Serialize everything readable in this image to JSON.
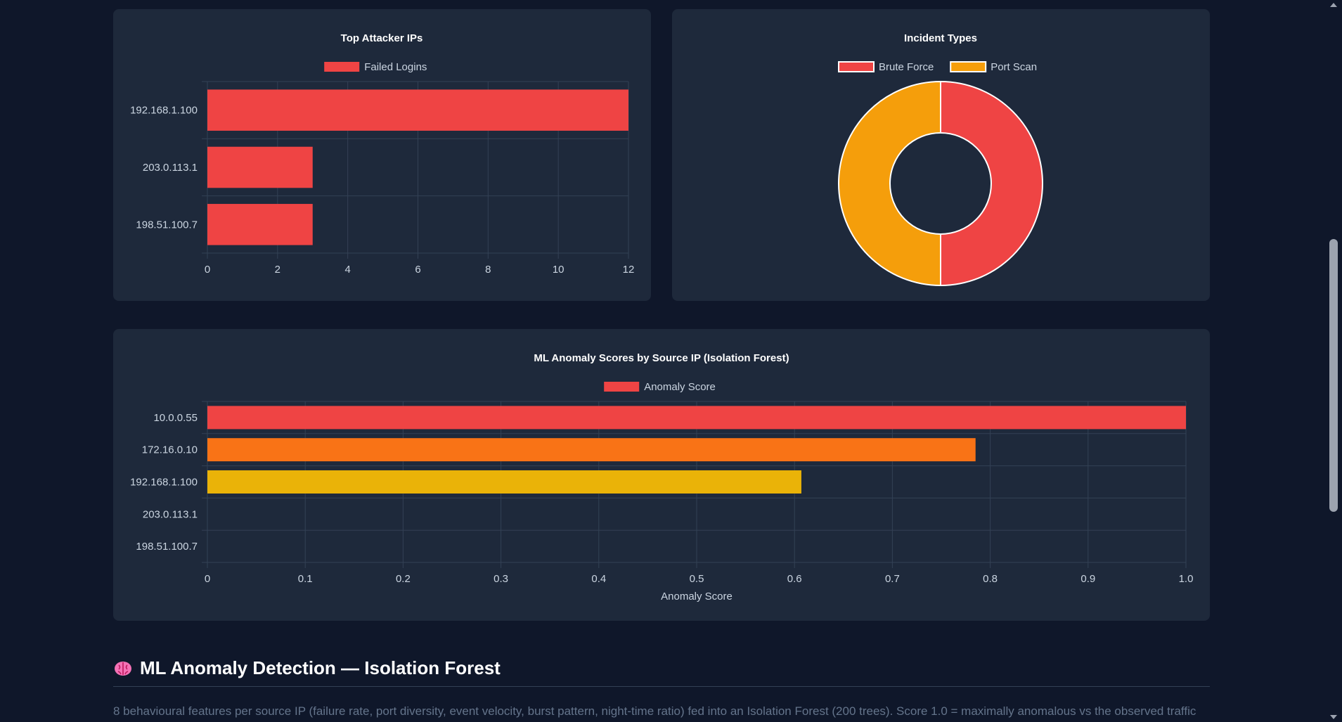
{
  "chart_data": [
    {
      "type": "bar",
      "orientation": "horizontal",
      "title": "Top Attacker IPs",
      "categories": [
        "192.168.1.100",
        "203.0.113.1",
        "198.51.100.7"
      ],
      "series": [
        {
          "name": "Failed Logins",
          "values": [
            12,
            3,
            3
          ],
          "color": "#ef4444"
        }
      ],
      "xlim": [
        0,
        12
      ],
      "xticks": [
        "0",
        "2",
        "4",
        "6",
        "8",
        "10",
        "12"
      ],
      "grid": true,
      "legend": "top-center"
    },
    {
      "type": "pie",
      "variant": "doughnut",
      "title": "Incident Types",
      "labels": [
        "Brute Force",
        "Port Scan"
      ],
      "values": [
        1,
        1
      ],
      "colors": [
        "#ef4444",
        "#f59e0b"
      ],
      "legend": "top-center"
    },
    {
      "type": "bar",
      "orientation": "horizontal",
      "title": "ML Anomaly Scores by Source IP (Isolation Forest)",
      "categories": [
        "10.0.0.55",
        "172.16.0.10",
        "192.168.1.100",
        "203.0.113.1",
        "198.51.100.7"
      ],
      "series": [
        {
          "name": "Anomaly Score",
          "values": [
            1.0,
            0.785,
            0.607,
            0,
            0
          ]
        }
      ],
      "bar_colors": [
        "#ef4444",
        "#f97316",
        "#eab308",
        "#22c55e",
        "#22c55e"
      ],
      "legend_color": "#ef4444",
      "xlim": [
        0,
        1.0
      ],
      "xticks": [
        "0",
        "0.1",
        "0.2",
        "0.3",
        "0.4",
        "0.5",
        "0.6",
        "0.7",
        "0.8",
        "0.9",
        "1.0"
      ],
      "xlabel": "Anomaly Score",
      "grid": true,
      "legend": "top-center"
    }
  ],
  "section": {
    "heading": "ML Anomaly Detection — Isolation Forest",
    "icon": "brain-icon",
    "description": "8 behavioural features per source IP (failure rate, port diversity, event velocity, burst pattern, night-time ratio) fed into an Isolation Forest (200 trees). Score 1.0 = maximally anomalous vs the observed traffic"
  },
  "colors": {
    "background": "#0f172a",
    "panel": "#1e293b",
    "grid": "#334155"
  }
}
